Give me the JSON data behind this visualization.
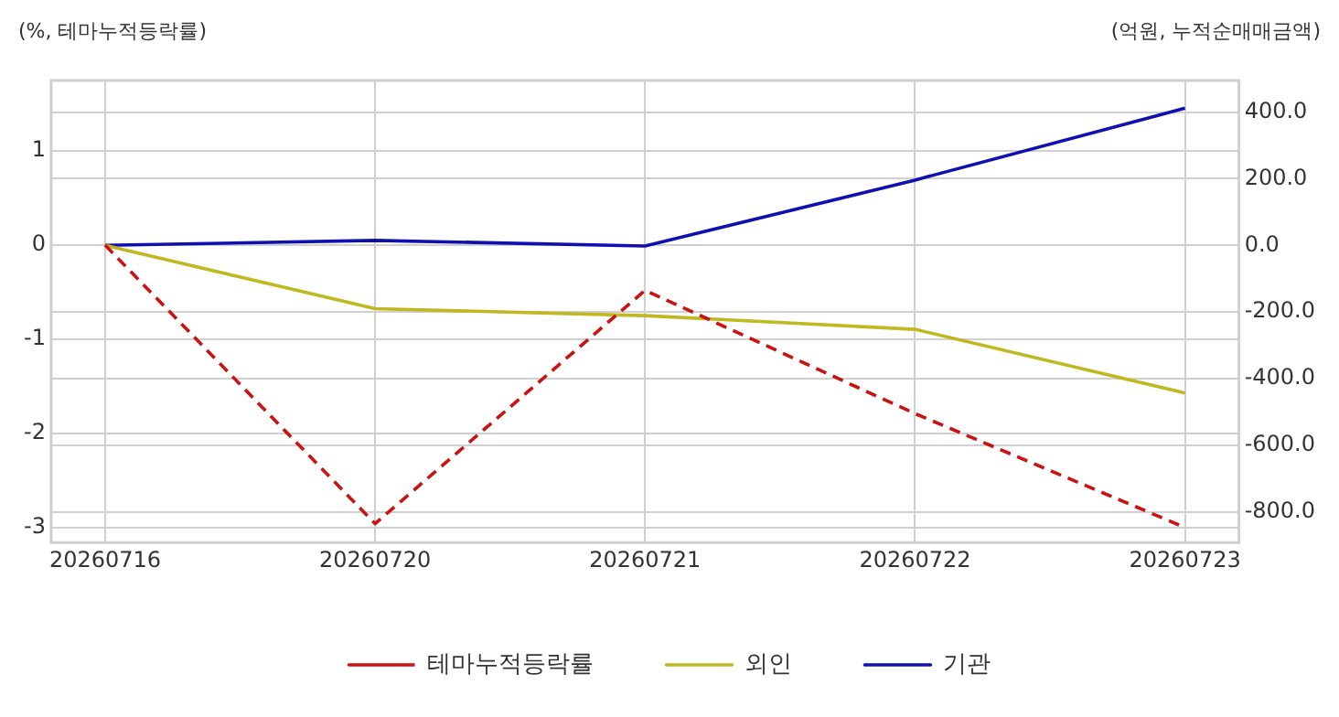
{
  "chart_data": {
    "type": "line",
    "ylabel": "(%, 테마누적등락률)",
    "y2label": "(억원, 누적순매매금액)",
    "categories": [
      "20260716",
      "20260720",
      "20260721",
      "20260722",
      "20260723"
    ],
    "series": [
      {
        "name": "테마누적등락률",
        "color": "#cc1111",
        "values": [
          0,
          -2.96,
          -0.48,
          -1.79,
          -3.0
        ],
        "line_style": "dashed"
      },
      {
        "name": "외인",
        "color": "#c0b820",
        "values": [
          0,
          -190,
          -211,
          -252,
          -443
        ],
        "axis": "y2",
        "line_style": "solid"
      },
      {
        "name": "기관",
        "color": "#1010b0",
        "values": [
          0,
          15,
          -2,
          196,
          412
        ],
        "axis": "y2",
        "line_style": "solid"
      }
    ],
    "ylim": [
      -3.16,
      1.75
    ],
    "yticks": [
      -3,
      -2,
      -1,
      0,
      1
    ],
    "y2lim": [
      -892,
      495
    ],
    "y2ticks": [
      {
        "value": -800,
        "label": "-800.0"
      },
      {
        "value": -600,
        "label": "-600.0"
      },
      {
        "value": -400,
        "label": "-400.0"
      },
      {
        "value": -200,
        "label": "-200.0"
      },
      {
        "value": 0,
        "label": "0.0"
      },
      {
        "value": 200,
        "label": "200.0"
      },
      {
        "value": 400,
        "label": "400.0"
      }
    ],
    "grid": true,
    "legend": "bottom",
    "marker": "none"
  }
}
